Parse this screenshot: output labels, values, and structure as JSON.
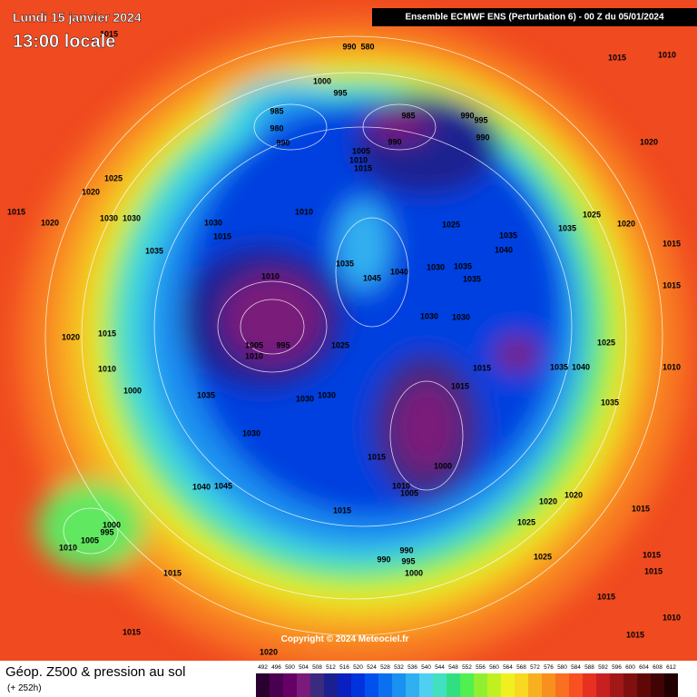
{
  "header": {
    "date": "Lundi 15 janvier 2024",
    "time": "13:00 locale",
    "run": "Ensemble ECMWF ENS  (Perturbation 6)  -  00 Z du 05/01/2024"
  },
  "copyright": "Copyright © 2024 Meteociel.fr",
  "footer": {
    "title": "Géop. Z500 & pression au sol",
    "lead": "(+ 252h)"
  },
  "scale": {
    "values": [
      492,
      496,
      500,
      504,
      508,
      512,
      516,
      520,
      524,
      528,
      532,
      536,
      540,
      544,
      548,
      552,
      556,
      560,
      564,
      568,
      572,
      576,
      580,
      584,
      588,
      592,
      596,
      600,
      604,
      608,
      612
    ],
    "colors": [
      "#2a0030",
      "#4a0050",
      "#660066",
      "#7a1a7a",
      "#3a2a80",
      "#1a2090",
      "#0a1fbf",
      "#0033dd",
      "#0050ee",
      "#0a70f0",
      "#1a90f0",
      "#30b0f0",
      "#50d0f0",
      "#40e0c0",
      "#30e080",
      "#50f050",
      "#90f030",
      "#c0f020",
      "#f0f020",
      "#f8d820",
      "#f8b020",
      "#f89020",
      "#f87020",
      "#f85020",
      "#e83020",
      "#c82020",
      "#a01818",
      "#801010",
      "#600808",
      "#400404",
      "#200000"
    ]
  },
  "isobar_labels": [
    1015,
    990,
    580,
    1000,
    995,
    985,
    980,
    990,
    985,
    990,
    990,
    995,
    990,
    1015,
    1010,
    1020,
    1005,
    1010,
    1015,
    1025,
    1020,
    1015,
    1020,
    1030,
    1030,
    1035,
    1030,
    1015,
    1010,
    1025,
    1035,
    1040,
    1035,
    1045,
    1040,
    1030,
    1035,
    1035,
    1010,
    1035,
    1025,
    1020,
    1015,
    1020,
    1015,
    1010,
    1000,
    1005,
    1010,
    995,
    1025,
    1030,
    1030,
    1015,
    1015,
    1035,
    1030,
    1030,
    1030,
    1015,
    1000,
    1010,
    1005,
    1045,
    1040,
    1000,
    995,
    1005,
    1010,
    1015,
    1015,
    990,
    995,
    990,
    1000,
    1020,
    1020,
    1025,
    1025,
    1015,
    1015,
    1015,
    1015,
    1015,
    1020,
    1010,
    1015,
    1035,
    1040,
    1025,
    1035,
    1015,
    1010
  ]
}
